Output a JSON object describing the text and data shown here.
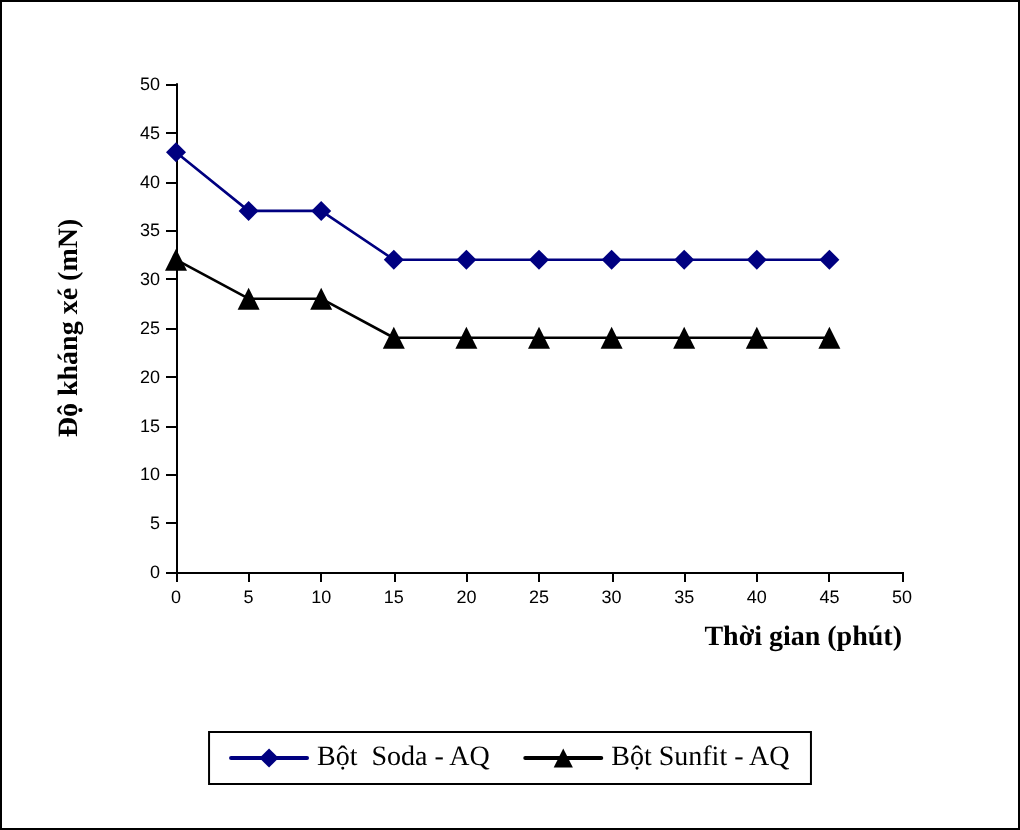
{
  "chart_data": {
    "type": "line",
    "xlabel": "Thời gian (phút)",
    "ylabel": "Độ kháng xé (mN)",
    "x": [
      0,
      5,
      10,
      15,
      20,
      25,
      30,
      35,
      40,
      45
    ],
    "series": [
      {
        "name": "Bột  Soda - AQ",
        "color": "#000080",
        "marker": "diamond",
        "values": [
          43,
          37,
          37,
          32,
          32,
          32,
          32,
          32,
          32,
          32
        ]
      },
      {
        "name": "Bột Sunfit - AQ",
        "color": "#000000",
        "marker": "triangle",
        "values": [
          32,
          28,
          28,
          24,
          24,
          24,
          24,
          24,
          24,
          24
        ]
      }
    ],
    "xlim": [
      0,
      50
    ],
    "xticks": [
      0,
      5,
      10,
      15,
      20,
      25,
      30,
      35,
      40,
      45,
      50
    ],
    "ylim": [
      0,
      50
    ],
    "yticks": [
      0,
      5,
      10,
      15,
      20,
      25,
      30,
      35,
      40,
      45,
      50
    ],
    "grid": false,
    "legend": "bottom",
    "line_style": "solid"
  }
}
